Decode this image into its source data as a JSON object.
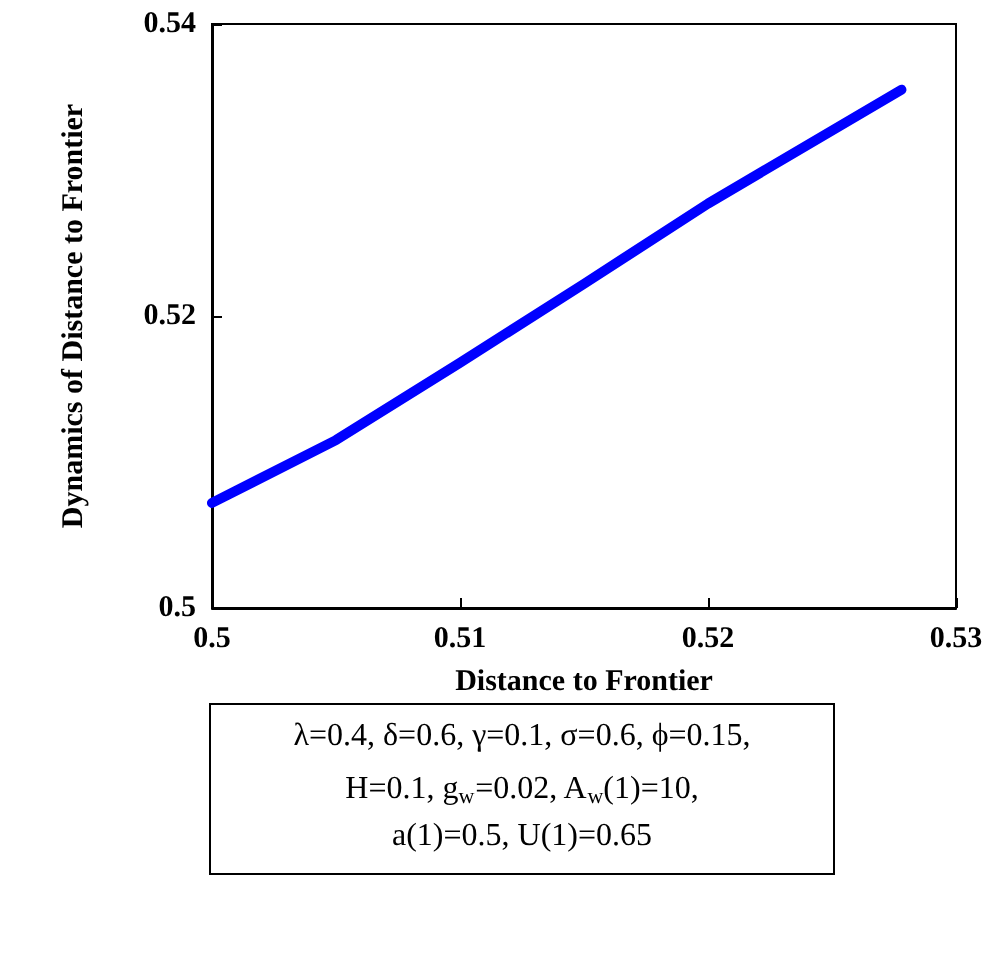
{
  "chart_data": {
    "type": "line",
    "xlabel": "Distance to Frontier",
    "ylabel": "Dynamics of Distance to Frontier",
    "x": [
      0.5,
      0.505,
      0.51,
      0.515,
      0.52,
      0.5278
    ],
    "series": [
      {
        "color": "#0000ff",
        "values": [
          0.5072,
          0.5115,
          0.5168,
          0.5222,
          0.5277,
          0.5355
        ]
      }
    ],
    "xlim": [
      0.5,
      0.53
    ],
    "xticks": [
      0.5,
      0.51,
      0.52,
      0.53
    ],
    "ylim": [
      0.5,
      0.54
    ],
    "yticks": [
      0.5,
      0.52,
      0.54
    ],
    "grid": false,
    "marker": "none",
    "line_style": "solid",
    "annotations": [
      "λ=0.4, δ=0.6, γ=0.1, σ=0.6, ϕ=0.15,",
      "H=0.1, g$_{w}$=0.02, A$_{w}$(1)=10,",
      "a(1)=0.5, U(1)=0.65"
    ]
  }
}
